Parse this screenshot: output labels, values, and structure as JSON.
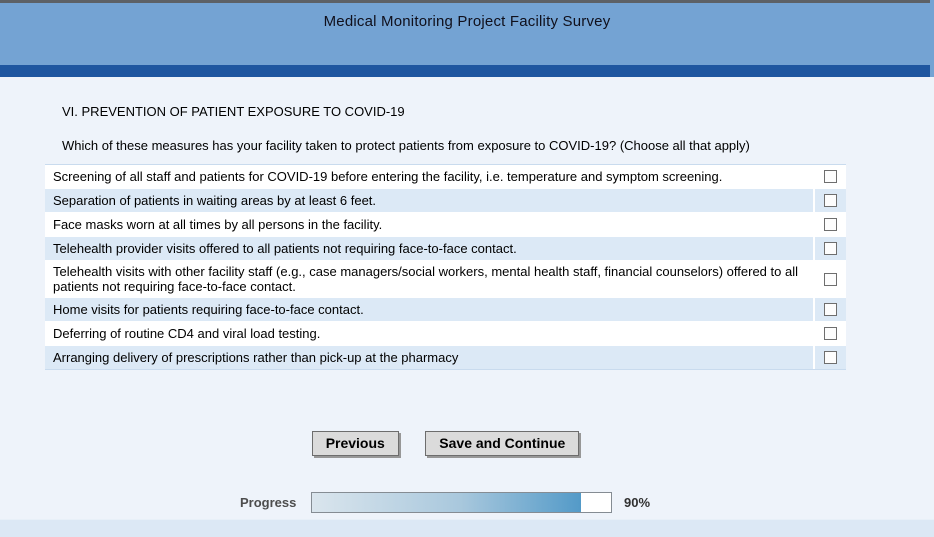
{
  "header": {
    "title": "Medical Monitoring Project Facility Survey"
  },
  "section": {
    "title": "VI. PREVENTION OF PATIENT EXPOSURE TO COVID-19",
    "question": "Which of these measures has your facility taken to protect patients from exposure to COVID-19? (Choose all that apply)"
  },
  "options": [
    {
      "label": "Screening of all staff and patients for COVID-19 before entering the facility, i.e. temperature and symptom screening.",
      "checked": false
    },
    {
      "label": "Separation of patients in waiting areas by at least 6 feet.",
      "checked": false
    },
    {
      "label": "Face masks worn at all times by all persons in the facility.",
      "checked": false
    },
    {
      "label": "Telehealth provider visits offered to all patients not requiring face-to-face contact.",
      "checked": false
    },
    {
      "label": "Telehealth visits with other facility staff (e.g., case managers/social workers, mental health staff, financial counselors) offered to all patients not requiring face-to-face contact.",
      "checked": false
    },
    {
      "label": "Home visits for patients requiring face-to-face contact.",
      "checked": false
    },
    {
      "label": "Deferring of routine CD4 and viral load testing.",
      "checked": false
    },
    {
      "label": "Arranging delivery of prescriptions rather than pick-up at the pharmacy",
      "checked": false
    }
  ],
  "buttons": {
    "previous": "Previous",
    "save_continue": "Save and Continue"
  },
  "progress": {
    "label": "Progress",
    "percent": 90,
    "value": "90%"
  },
  "colors": {
    "header_bg": "#74a3d3",
    "divider_bar": "#1e56a0",
    "page_bg": "#eef3fa",
    "row_stripe": "#dce9f6",
    "footer_bg": "#dce8f5",
    "progress_fill_start": "#dae5ed",
    "progress_fill_end": "#539ac8"
  }
}
